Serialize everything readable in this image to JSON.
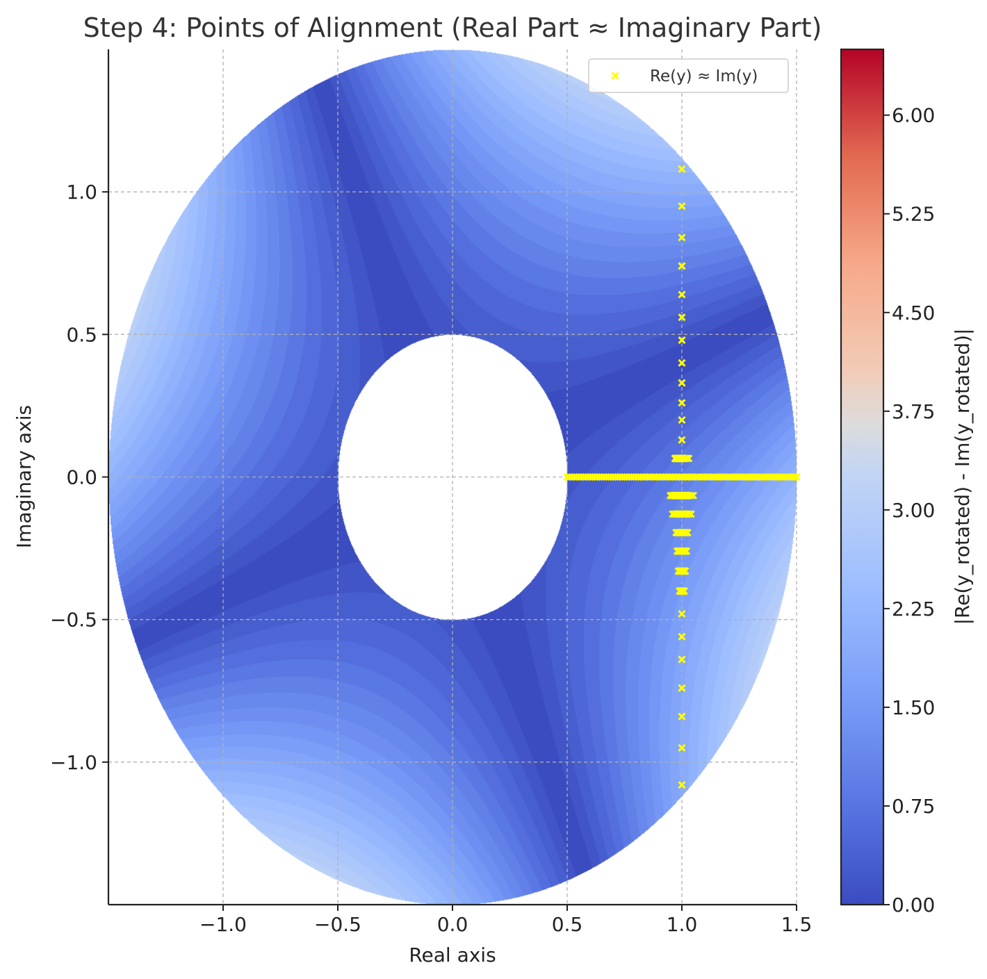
{
  "chart_data": {
    "type": "heatmap",
    "title": "Step 4: Points of Alignment (Real Part ≈ Imaginary Part)",
    "xlabel": "Real axis",
    "ylabel": "Imaginary axis",
    "xlim": [
      -1.5,
      1.5
    ],
    "ylim": [
      -1.5,
      1.5
    ],
    "xticks": [
      -1.0,
      -0.5,
      0.0,
      0.5,
      1.0,
      1.5
    ],
    "xtick_labels": [
      "−1.0",
      "−0.5",
      "0.0",
      "0.5",
      "1.0",
      "1.5"
    ],
    "yticks": [
      1.0,
      0.5,
      0.0,
      -0.5,
      -1.0
    ],
    "ytick_labels": [
      "1.0",
      "0.5",
      "0.0",
      "−0.5",
      "−1.0"
    ],
    "grid": true,
    "domain": {
      "shape": "annulus",
      "inner_radius": 0.5,
      "outer_radius": 1.5
    },
    "colormap": "coolwarm",
    "colorbar": {
      "label": "|Re(y_rotated) - Im(y_rotated)|",
      "range": [
        0,
        6.5
      ],
      "ticks": [
        0.0,
        0.75,
        1.5,
        2.25,
        3.0,
        3.75,
        4.5,
        5.25,
        6.0
      ],
      "tick_labels": [
        "0.00",
        "0.75",
        "1.50",
        "2.25",
        "3.00",
        "3.75",
        "4.50",
        "5.25",
        "6.00"
      ]
    },
    "field": "|(x^2 - y^2) - 2xy|",
    "legend": {
      "placement": "top-right",
      "entries": [
        {
          "label": "Re(y) ≈ Im(y)",
          "marker": "x",
          "color": "#ffff00"
        }
      ]
    },
    "series": [
      {
        "name": "Re(y) ≈ Im(y)",
        "marker": "x",
        "color": "#ffff00",
        "x": [
          1.0,
          1.0,
          1.0,
          1.0,
          1.0,
          1.0,
          1.0,
          1.0,
          1.0,
          1.0,
          1.0,
          1.0,
          1.0,
          0.97,
          1.03,
          0.97,
          1.03,
          0.95,
          1.05,
          0.96,
          1.04,
          0.975,
          1.025,
          0.98,
          1.02,
          0.985,
          1.015,
          0.99,
          1.01,
          1.0,
          1.0,
          1.0,
          1.0,
          1.0,
          1.0,
          1.0,
          1.0,
          1.0,
          1.0
        ],
        "y": [
          1.08,
          0.95,
          0.84,
          0.74,
          0.64,
          0.56,
          0.48,
          0.4,
          0.33,
          0.26,
          0.2,
          0.13,
          0.065,
          0.065,
          0.065,
          -0.065,
          -0.065,
          -0.065,
          -0.065,
          -0.13,
          -0.13,
          -0.195,
          -0.195,
          -0.26,
          -0.26,
          -0.33,
          -0.33,
          -0.4,
          -0.4,
          -0.48,
          -0.56,
          -0.64,
          -0.74,
          -0.84,
          -0.95,
          -1.08,
          0.74,
          -0.74,
          0.0
        ],
        "horizontal_run": {
          "y": 0.0,
          "x_from": 0.5,
          "x_to": 1.5
        }
      }
    ]
  }
}
